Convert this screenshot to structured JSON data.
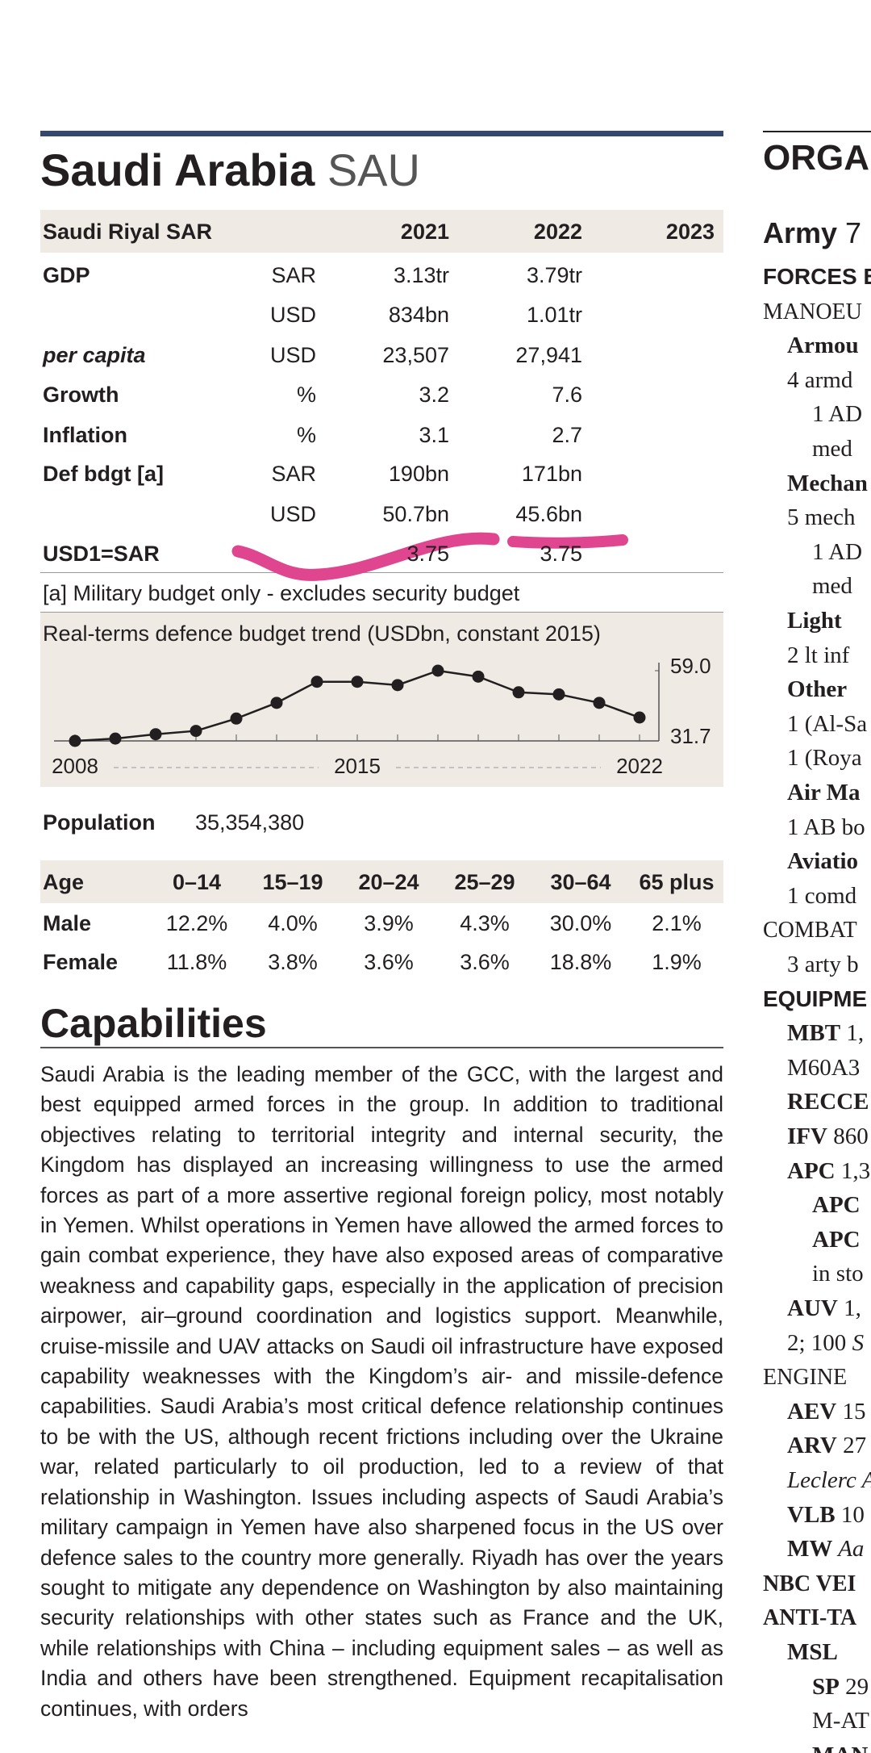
{
  "header": {
    "title": "Saudi Arabia",
    "code": "SAU"
  },
  "economy_table": {
    "currency": "Saudi Riyal SAR",
    "years": [
      "2021",
      "2022",
      "2023"
    ],
    "rows": [
      {
        "label": "GDP",
        "unit": "SAR",
        "values": [
          "3.13tr",
          "3.79tr"
        ]
      },
      {
        "unit": "USD",
        "values": [
          "834bn",
          "1.01tr"
        ]
      },
      {
        "label": "per capita",
        "unit": "USD",
        "values": [
          "23,507",
          "27,941"
        ]
      },
      {
        "label": "Growth",
        "unit": "%",
        "values": [
          "3.2",
          "7.6"
        ]
      },
      {
        "label": "Inflation",
        "unit": "%",
        "values": [
          "3.1",
          "2.7"
        ]
      },
      {
        "label": "Def bdgt [a]",
        "unit": "SAR",
        "values": [
          "190bn",
          "171bn"
        ]
      },
      {
        "unit": "USD",
        "values": [
          "50.7bn",
          "45.6bn"
        ]
      },
      {
        "label": "USD1=SAR",
        "values": [
          "3.75",
          "3.75"
        ]
      }
    ],
    "note": "[a] Military budget only - excludes security budget"
  },
  "chart_data": {
    "type": "line",
    "title": "Real-terms defence budget trend (USDbn, constant 2015)",
    "x": [
      2008,
      2009,
      2010,
      2011,
      2012,
      2013,
      2014,
      2015,
      2016,
      2017,
      2018,
      2019,
      2020,
      2021,
      2022
    ],
    "values": [
      31.7,
      32.6,
      34.3,
      35.6,
      40.4,
      46.5,
      54.7,
      54.7,
      53.4,
      59.0,
      56.7,
      50.6,
      49.8,
      46.5,
      40.8
    ],
    "color": "#231f20",
    "xlim": [
      2008,
      2022
    ],
    "xticks": [
      2008,
      2015,
      2022
    ],
    "ylim": [
      31.7,
      59.0
    ],
    "yticks": [
      {
        "value": 59.0,
        "label": "59.0"
      },
      31.7
    ]
  },
  "population": {
    "label": "Population",
    "value": "35,354,380"
  },
  "age_table": {
    "header": [
      "Age",
      "0–14",
      "15–19",
      "20–24",
      "25–29",
      "30–64",
      "65 plus"
    ],
    "rows": [
      [
        "Male",
        "12.2%",
        "4.0%",
        "3.9%",
        "4.3%",
        "30.0%",
        "2.1%"
      ],
      [
        "Female",
        "11.8%",
        "3.8%",
        "3.6%",
        "3.6%",
        "18.8%",
        "1.9%"
      ]
    ]
  },
  "capabilities": {
    "title": "Capabilities",
    "text": "Saudi Arabia is the leading member of the GCC, with the largest and best equipped armed forces in the group. In addition to traditional objectives relating to territorial integrity and internal security, the Kingdom has displayed an increasing willingness to use the armed forces as part of a more assertive regional foreign policy, most notably in Yemen. Whilst operations in Yemen have allowed the armed forces to gain combat experience, they have also exposed areas of comparative weakness and capability gaps, especially in the application of precision airpower, air–ground coordination and logistics support. Meanwhile, cruise-missile and UAV attacks on Saudi oil infrastructure have exposed capability weaknesses with the Kingdom’s air- and missile-defence capabilities. Saudi Arabia’s most critical defence relationship continues to be with the US, although recent frictions including over the Ukraine war, related particularly to oil production, led to a review of that relationship in Washington. Issues including aspects of Saudi Arabia’s military campaign in Yemen have also sharpened focus in the US over defence sales to the country more generally. Riyadh has over the years sought to mitigate any dependence on Washington by also maintaining security relationships with other states such as France and the UK, while relationships with China – including equipment sales – as well as India and others have been strengthened. Equipment recapitalisation continues, with orders"
  },
  "organisation": {
    "title": "ORGAN",
    "army": [
      "Army",
      " 7"
    ],
    "lines": [
      [
        "FORCES B"
      ],
      [
        "MANOEU"
      ],
      [
        "Armou"
      ],
      [
        "4 armd"
      ],
      [
        "1 AD"
      ],
      [
        "med"
      ],
      [
        "Mechan"
      ],
      [
        "5 mech"
      ],
      [
        "1 AD"
      ],
      [
        "med"
      ],
      [
        "Light"
      ],
      [
        "2 lt inf"
      ],
      [
        "Other"
      ],
      [
        "1 (Al-Sa"
      ],
      [
        "1 (Roya"
      ],
      [
        "Air Ma"
      ],
      [
        "1 AB bo"
      ],
      [
        "Aviatio"
      ],
      [
        "1 comd"
      ],
      [
        "COMBAT"
      ],
      [
        "3 arty b"
      ],
      [
        "EQUIPME"
      ],
      [
        "MBT",
        " 1,"
      ],
      [
        "M60A3"
      ],
      [
        "RECCE"
      ],
      [
        "IFV",
        " 860"
      ],
      [
        "APC",
        " 1,3"
      ],
      [
        "APC"
      ],
      [
        "APC"
      ],
      [
        "in sto"
      ],
      [
        "AUV",
        " 1,"
      ],
      [
        "2; 100 ",
        "S"
      ],
      [
        "ENGINE"
      ],
      [
        "AEV",
        " 15"
      ],
      [
        "ARV",
        " 27"
      ],
      [
        "Leclerc A"
      ],
      [
        "VLB",
        " 10"
      ],
      [
        "MW",
        " Aa"
      ],
      [
        "NBC VEI"
      ],
      [
        "ANTI-TA"
      ],
      [
        "MSL"
      ],
      [
        "SP",
        " 29"
      ],
      [
        "M-AT"
      ],
      [
        "MAN"
      ]
    ]
  }
}
